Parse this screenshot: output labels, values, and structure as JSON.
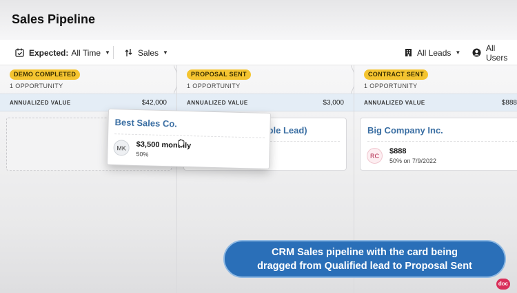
{
  "header": {
    "title": "Sales Pipeline"
  },
  "toolbar": {
    "expected_label": "Expected:",
    "expected_value": "All Time",
    "pipeline_label": "Sales",
    "leads_label": "All Leads",
    "users_label": "All Users"
  },
  "columns": [
    {
      "stage": "DEMO COMPLETED",
      "opportunities": "1 OPPORTUNITY",
      "value_label": "ANNUALIZED VALUE",
      "value": "$42,000"
    },
    {
      "stage": "PROPOSAL SENT",
      "opportunities": "1 OPPORTUNITY",
      "value_label": "ANNUALIZED VALUE",
      "value": "$3,000"
    },
    {
      "stage": "CONTRACT SENT",
      "opportunities": "1 OPPORTUNITY",
      "value_label": "ANNUALIZED VALUE",
      "value": "$888"
    }
  ],
  "cards": {
    "proposal": {
      "title": "mple Lead)"
    },
    "contract": {
      "title": "Big Company Inc.",
      "initials": "RC",
      "amount": "$888",
      "detail": "50% on 7/9/2022"
    }
  },
  "drag_card": {
    "title": "Best Sales Co.",
    "initials": "MK",
    "amount": "$3,500 monthly",
    "detail": "50%"
  },
  "caption": {
    "line1": "CRM Sales pipeline with the card being",
    "line2": "dragged from Qualified lead to Proposal Sent"
  },
  "logo": {
    "text": "doc"
  },
  "colors": {
    "badge": "#f4c430",
    "card_title": "#3b6fa3",
    "caption_bg": "#2a6fb8",
    "value_bar": "#e4edf6"
  }
}
